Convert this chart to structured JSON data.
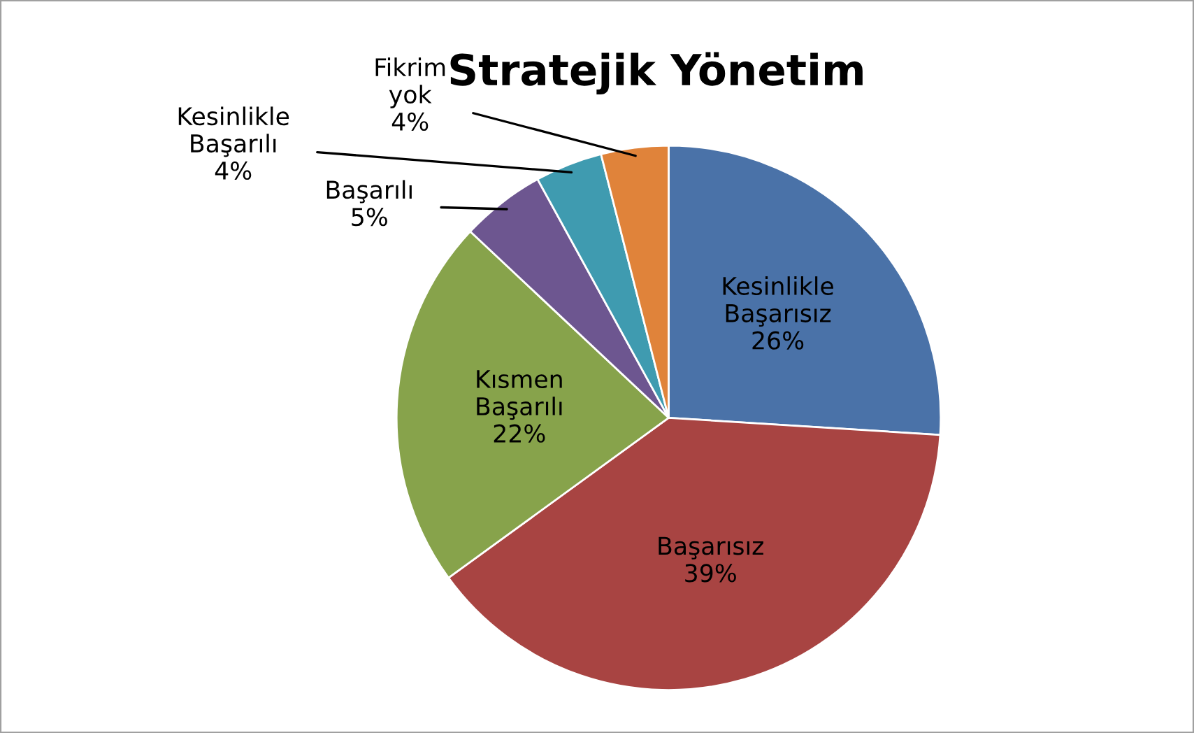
{
  "chart_data": {
    "type": "pie",
    "title": "Stratejik Yönetim",
    "categories": [
      "Kesinlikle Başarısız",
      "Başarısız",
      "Kısmen Başarılı",
      "Başarılı",
      "Kesinlikle Başarılı",
      "Fikrim yok"
    ],
    "values": [
      26,
      39,
      22,
      5,
      4,
      4
    ],
    "value_labels": [
      "26%",
      "39%",
      "22%",
      "5%",
      "4%",
      "4%"
    ],
    "colors": [
      "#4a72a8",
      "#a84442",
      "#87a34b",
      "#6d5690",
      "#3f9bb0",
      "#e0833a"
    ],
    "legend": false
  }
}
